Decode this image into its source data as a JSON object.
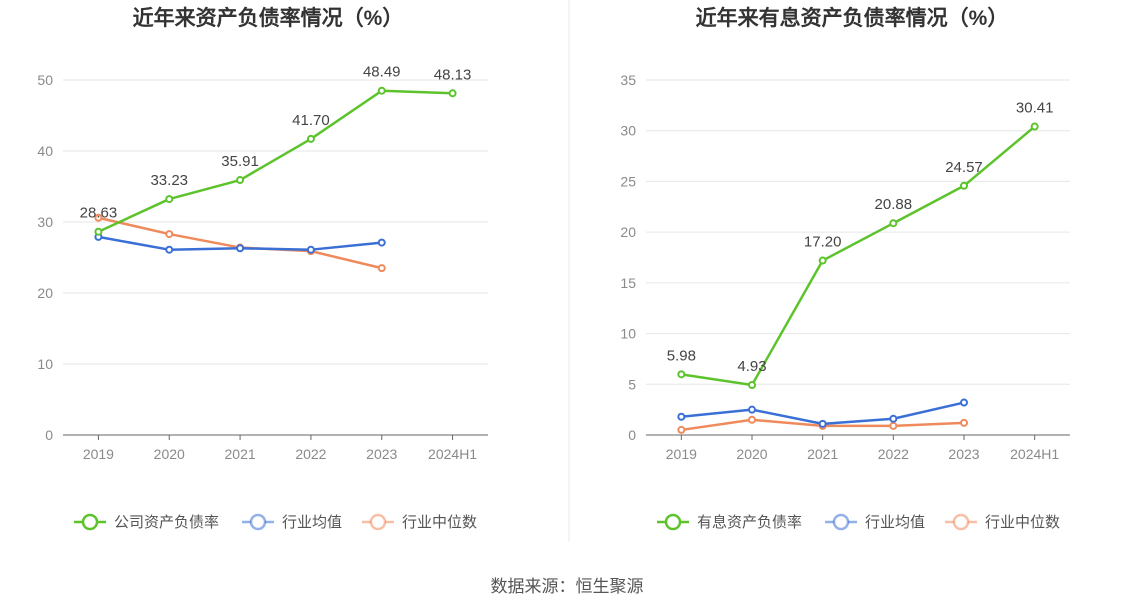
{
  "source": "数据来源：恒生聚源",
  "colors": {
    "company": "#5cc32c",
    "industry_avg": "#3a6fd6",
    "industry_median": "#ef8a5c",
    "grid": "#e6e6e6",
    "axis": "#666666",
    "divider": "#e8e8e8"
  },
  "chart_data": [
    {
      "type": "line",
      "title": "近年来资产负债率情况（%）",
      "categories": [
        "2019",
        "2020",
        "2021",
        "2022",
        "2023",
        "2024H1"
      ],
      "ylim": [
        0,
        50
      ],
      "yticks": [
        0,
        10,
        20,
        30,
        40,
        50
      ],
      "xlabel": "",
      "ylabel": "",
      "grid": true,
      "legend_position": "bottom",
      "series": [
        {
          "name": "公司资产负债率",
          "key": "company",
          "values": [
            28.63,
            33.23,
            35.91,
            41.7,
            48.49,
            48.13
          ],
          "labels": [
            "28.63",
            "33.23",
            "35.91",
            "41.70",
            "48.49",
            "48.13"
          ]
        },
        {
          "name": "行业均值",
          "key": "industry_avg",
          "values": [
            27.9,
            26.1,
            26.3,
            26.1,
            27.1,
            null
          ]
        },
        {
          "name": "行业中位数",
          "key": "industry_median",
          "values": [
            30.6,
            28.3,
            26.4,
            25.9,
            23.5,
            null
          ]
        }
      ]
    },
    {
      "type": "line",
      "title": "近年来有息资产负债率情况（%）",
      "categories": [
        "2019",
        "2020",
        "2021",
        "2022",
        "2023",
        "2024H1"
      ],
      "ylim": [
        0,
        35
      ],
      "yticks": [
        0,
        5,
        10,
        15,
        20,
        25,
        30,
        35
      ],
      "xlabel": "",
      "ylabel": "",
      "grid": true,
      "legend_position": "bottom",
      "series": [
        {
          "name": "有息资产负债率",
          "key": "company",
          "values": [
            5.98,
            4.93,
            17.2,
            20.88,
            24.57,
            30.41
          ],
          "labels": [
            "5.98",
            "4.93",
            "17.20",
            "20.88",
            "24.57",
            "30.41"
          ]
        },
        {
          "name": "行业均值",
          "key": "industry_avg",
          "values": [
            1.8,
            2.5,
            1.1,
            1.6,
            3.2,
            null
          ]
        },
        {
          "name": "行业中位数",
          "key": "industry_median",
          "values": [
            0.5,
            1.5,
            0.9,
            0.9,
            1.2,
            null
          ]
        }
      ]
    }
  ]
}
